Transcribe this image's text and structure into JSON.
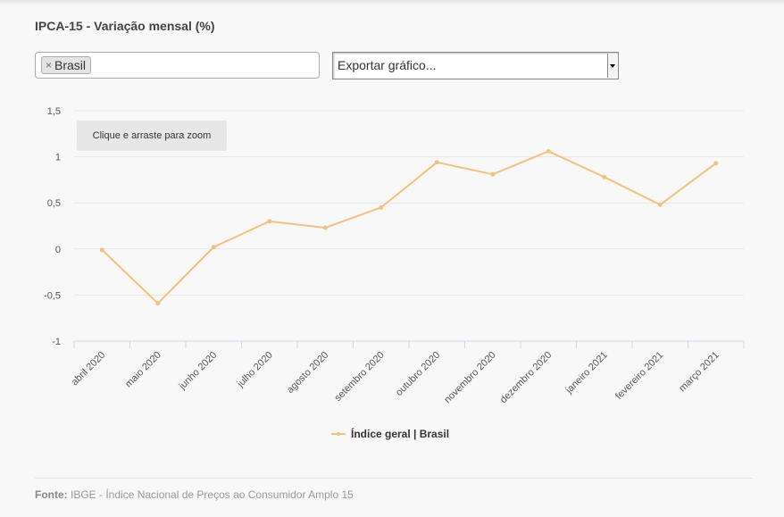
{
  "header": {
    "title": "IPCA-15 - Variação mensal (%)"
  },
  "filters": {
    "selected_tag": "Brasil",
    "remove_symbol": "×",
    "export_label": "Exportar gráfico..."
  },
  "zoom_hint": "Clique e arraste para zoom",
  "chart_data": {
    "type": "line",
    "title": "IPCA-15 - Variação mensal (%)",
    "categories": [
      "abril 2020",
      "maio 2020",
      "junho 2020",
      "julho 2020",
      "agosto 2020",
      "setembro 2020",
      "outubro 2020",
      "novembro 2020",
      "dezembro 2020",
      "janeiro 2021",
      "fevereiro 2021",
      "março 2021"
    ],
    "series": [
      {
        "name": "Índice geral | Brasil",
        "values": [
          -0.01,
          -0.59,
          0.02,
          0.3,
          0.23,
          0.45,
          0.94,
          0.81,
          1.06,
          0.78,
          0.48,
          0.93
        ],
        "color": "#f1c27d"
      }
    ],
    "y_ticks": [
      "1,5",
      "1",
      "0,5",
      "0",
      "-0,5",
      "-1"
    ],
    "y_tick_values": [
      1.5,
      1,
      0.5,
      0,
      -0.5,
      -1
    ],
    "ylim": [
      -1,
      1.5
    ],
    "grid": true,
    "legend_position": "bottom-center"
  },
  "footer": {
    "source_label": "Fonte:",
    "source_text": "IBGE - Índice Nacional de Preços ao Consumidor Amplo 15"
  }
}
